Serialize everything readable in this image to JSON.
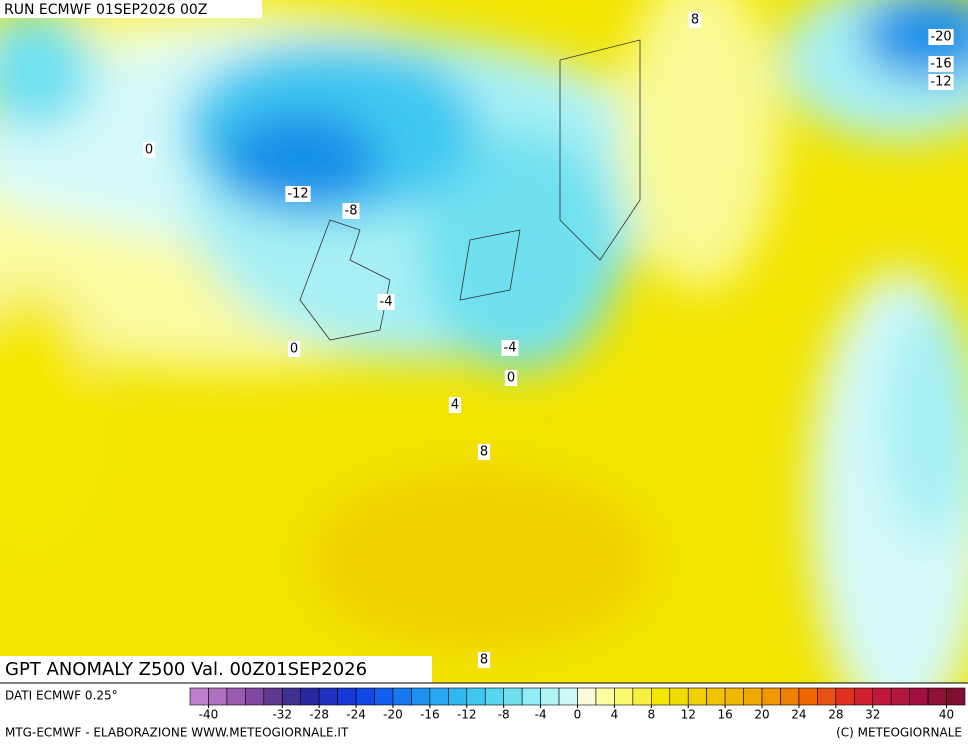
{
  "header": {
    "run": "RUN ECMWF 01SEP2026 00Z"
  },
  "map": {
    "title": "GPT ANOMALY Z500 Val. 00Z01SEP2026",
    "contour_labels": [
      8,
      0,
      -12,
      -8,
      -4,
      0,
      -4,
      0,
      4,
      8,
      8,
      -20,
      -16,
      -12
    ]
  },
  "footer": {
    "source": "DATI ECMWF 0.25°",
    "credit": "MTG-ECMWF - ELABORAZIONE WWW.METEOGIORNALE.IT",
    "copyright": "(C) METEOGIORNALE"
  },
  "colorbar": {
    "range": [
      -42,
      42
    ],
    "colors": [
      "#c080d0",
      "#b070c0",
      "#9a5ab0",
      "#8048a0",
      "#603890",
      "#403090",
      "#2828a0",
      "#2030c0",
      "#1838d8",
      "#1048e8",
      "#1060f0",
      "#1878f0",
      "#2090f0",
      "#28a8f0",
      "#30b8f0",
      "#40c8f0",
      "#58d8f0",
      "#70e0f0",
      "#90ecf5",
      "#b0f4f8",
      "#d0fafa",
      "#f8fcd8",
      "#fcfca0",
      "#fafa70",
      "#f8f040",
      "#f5e800",
      "#f0dc00",
      "#f0d000",
      "#f0c400",
      "#f0b800",
      "#f0a800",
      "#f09800",
      "#f08000",
      "#f06800",
      "#e85018",
      "#e03020",
      "#d02030",
      "#c01838",
      "#b01840",
      "#a01040",
      "#901038",
      "#801030"
    ],
    "ticks": [
      -40,
      -32,
      -28,
      -24,
      -20,
      -16,
      -12,
      -8,
      -4,
      0,
      4,
      8,
      12,
      16,
      20,
      24,
      28,
      32,
      40
    ]
  }
}
